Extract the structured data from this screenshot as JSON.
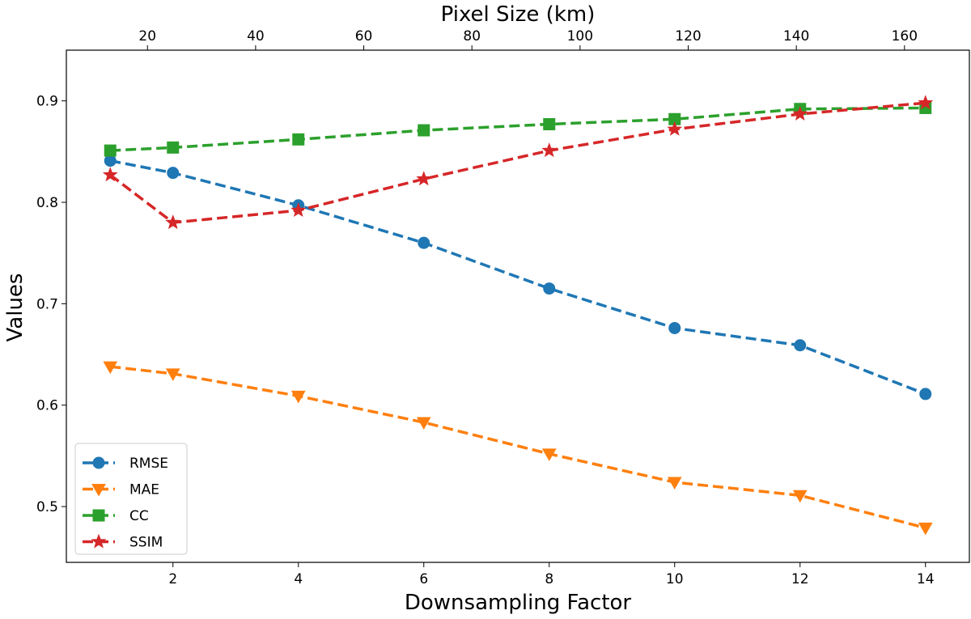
{
  "chart_data": {
    "type": "line",
    "xlabel": "Downsampling Factor",
    "ylabel": "Values",
    "x2label": "Pixel Size (km)",
    "x": [
      1,
      2,
      4,
      6,
      8,
      10,
      12,
      14
    ],
    "xlim": [
      0.3,
      14.7
    ],
    "ylim": [
      0.445,
      0.95
    ],
    "xticks": [
      2,
      4,
      6,
      8,
      10,
      12,
      14
    ],
    "yticks": [
      0.5,
      0.6,
      0.7,
      0.8,
      0.9
    ],
    "x2lim": [
      5.0,
      172.0
    ],
    "x2ticks": [
      20,
      40,
      60,
      80,
      100,
      120,
      140,
      160
    ],
    "legend_position": "lower-left",
    "series": [
      {
        "name": "RMSE",
        "color": "#1f77b4",
        "marker": "circle",
        "values": [
          0.841,
          0.829,
          0.797,
          0.76,
          0.715,
          0.676,
          0.659,
          0.611
        ]
      },
      {
        "name": "MAE",
        "color": "#ff7f0e",
        "marker": "triangle-down",
        "values": [
          0.638,
          0.631,
          0.609,
          0.583,
          0.552,
          0.524,
          0.511,
          0.479
        ]
      },
      {
        "name": "CC",
        "color": "#2ca02c",
        "marker": "square",
        "values": [
          0.851,
          0.854,
          0.862,
          0.871,
          0.877,
          0.882,
          0.892,
          0.893
        ]
      },
      {
        "name": "SSIM",
        "color": "#d62728",
        "marker": "star",
        "values": [
          0.827,
          0.78,
          0.792,
          0.823,
          0.851,
          0.872,
          0.887,
          0.898
        ]
      }
    ]
  }
}
